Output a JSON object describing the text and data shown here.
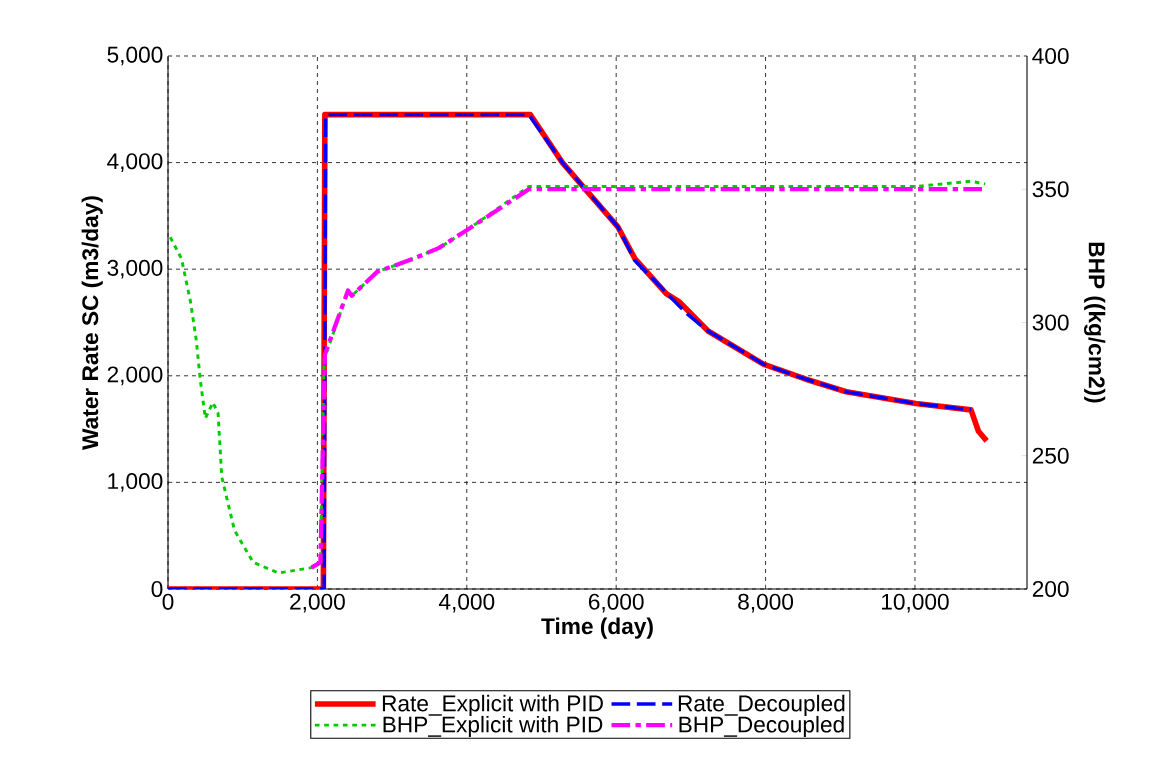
{
  "chart_data": {
    "type": "line",
    "xlabel": "Time (day)",
    "ylabel": "Water Rate SC (m3/day)",
    "y2label": "BHP ((kg/cm2))",
    "xlim": [
      0,
      11500
    ],
    "ylim": [
      0,
      5000
    ],
    "y2lim": [
      200,
      400
    ],
    "xticks": [
      0,
      {
        "value": 2000,
        "label": "2,000"
      },
      {
        "value": 4000,
        "label": "4,000"
      },
      {
        "value": 6000,
        "label": "6,000"
      },
      {
        "value": 8000,
        "label": "8,000"
      },
      {
        "value": 10000,
        "label": "10,000"
      }
    ],
    "yticks": [
      0,
      {
        "value": 1000,
        "label": "1,000"
      },
      {
        "value": 2000,
        "label": "2,000"
      },
      {
        "value": 3000,
        "label": "3,000"
      },
      {
        "value": 4000,
        "label": "4,000"
      },
      {
        "value": 5000,
        "label": "5,000"
      }
    ],
    "y2ticks": [
      200,
      250,
      300,
      350,
      400
    ],
    "grid": true,
    "legend": "bottom",
    "series": [
      {
        "name": "Rate_Explicit with PID",
        "color": "#ff0000",
        "line_style": "solid",
        "x": [
          0,
          2080,
          2100,
          4850,
          5280,
          5600,
          6020,
          6250,
          6670,
          6850,
          7230,
          7970,
          8530,
          9080,
          10010,
          10750,
          10850,
          10960
        ],
        "values": [
          0,
          0,
          4450,
          4450,
          4000,
          3740,
          3400,
          3100,
          2770,
          2690,
          2420,
          2110,
          1970,
          1850,
          1740,
          1680,
          1480,
          1390
        ]
      },
      {
        "name": "Rate_Decoupled",
        "color": "#0000ff",
        "line_style": "dashed",
        "x": [
          0,
          2090,
          2110,
          4830,
          5280,
          5600,
          6020,
          6250,
          6950,
          7230,
          7970,
          8530,
          9080,
          10010,
          10750
        ],
        "values": [
          0,
          0,
          4450,
          4450,
          4000,
          3740,
          3400,
          3080,
          2580,
          2420,
          2110,
          1970,
          1850,
          1740,
          1680
        ]
      },
      {
        "name": "BHP_Explicit with PID",
        "color": "#00cc00",
        "line_style": "dotted",
        "axis": "y2",
        "x": [
          30,
          180,
          300,
          380,
          430,
          500,
          600,
          670,
          720,
          890,
          1140,
          1480,
          1920,
          2040,
          2090,
          2410,
          2460,
          2800,
          3290,
          3630,
          4020,
          4830,
          10000,
          10750,
          10940
        ],
        "values": [
          332,
          324,
          308,
          293,
          279,
          264,
          270,
          266,
          242,
          222,
          210,
          206,
          208,
          210,
          286,
          312,
          310,
          319,
          324,
          328,
          335,
          351,
          351,
          353,
          352
        ]
      },
      {
        "name": "BHP_Decoupled",
        "color": "#ff00ff",
        "line_style": "dashdot",
        "axis": "y2",
        "x": [
          1920,
          2040,
          2100,
          2410,
          2460,
          2800,
          3290,
          3630,
          4020,
          4830,
          10960
        ],
        "values": [
          208,
          210,
          288,
          312,
          310,
          319,
          324,
          328,
          335,
          350,
          350
        ]
      }
    ]
  }
}
